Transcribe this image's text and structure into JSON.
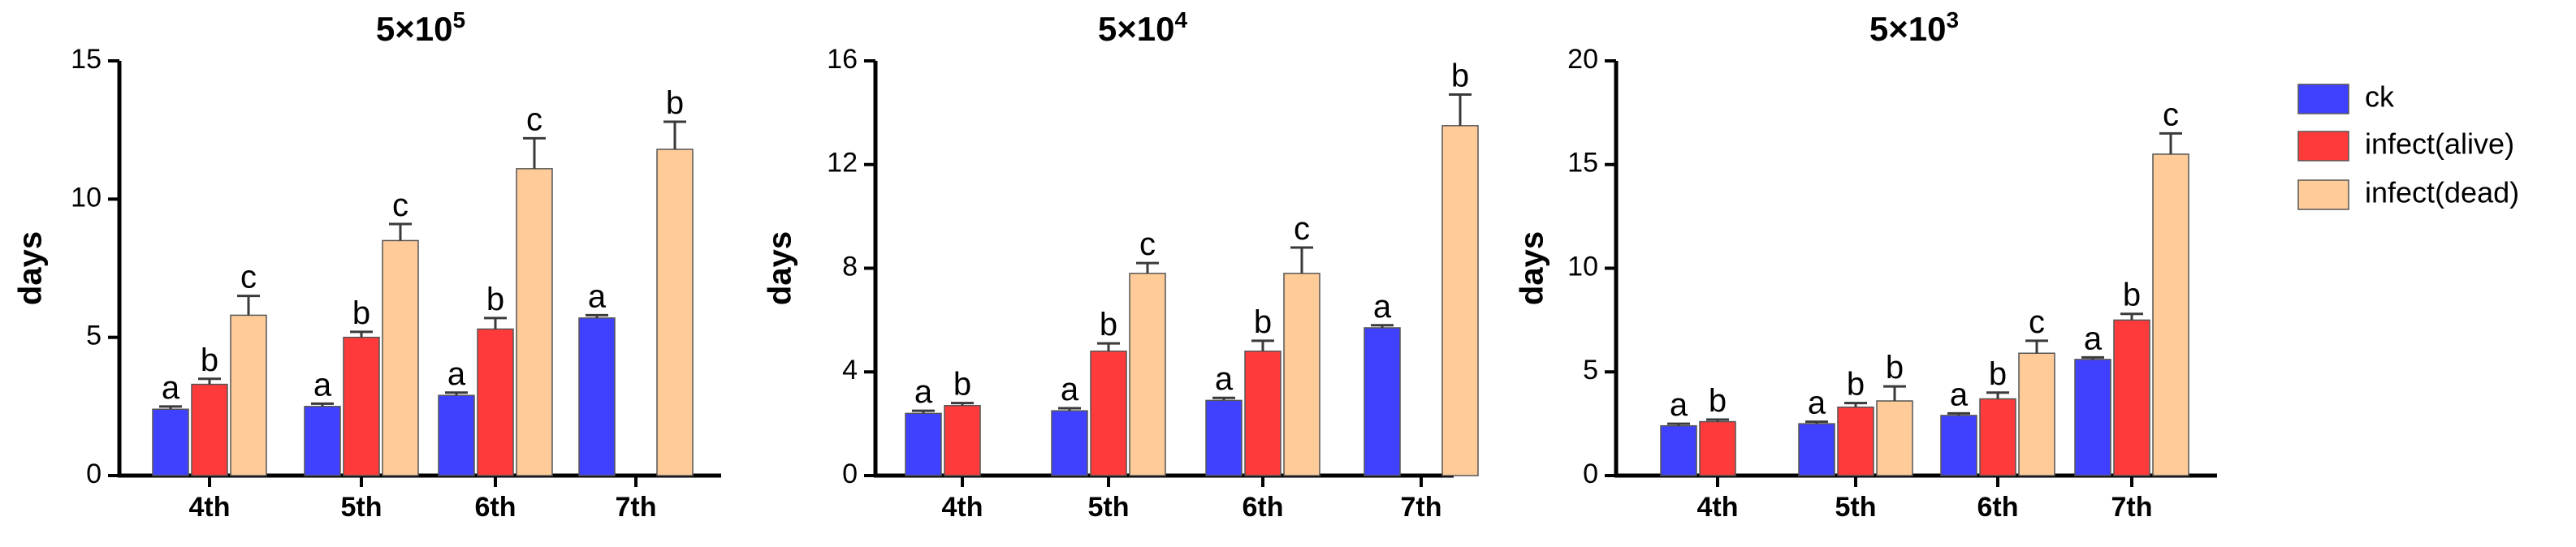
{
  "colors": {
    "ck": "#4040ff",
    "infect_alive": "#ff3a3a",
    "infect_dead": "#ffcc99"
  },
  "legend": [
    {
      "label": "ck",
      "color": "#4040ff"
    },
    {
      "label": "infect(alive)",
      "color": "#ff3a3a"
    },
    {
      "label": "infect(dead)",
      "color": "#ffcc99"
    }
  ],
  "chart_data": [
    {
      "type": "bar",
      "title": "5×10",
      "title_exp": "5",
      "ylabel": "days",
      "ylim": [
        0,
        15
      ],
      "yticks": [
        0,
        5,
        10,
        15
      ],
      "categories": [
        "4th",
        "5th",
        "6th",
        "7th"
      ],
      "series": [
        {
          "name": "ck",
          "values": [
            2.4,
            2.5,
            2.9,
            5.7
          ],
          "errors": [
            0.1,
            0.1,
            0.1,
            0.1
          ],
          "labels": [
            "a",
            "a",
            "a",
            "a"
          ]
        },
        {
          "name": "infect(alive)",
          "values": [
            3.3,
            5.0,
            5.3,
            null
          ],
          "errors": [
            0.2,
            0.2,
            0.4,
            null
          ],
          "labels": [
            "b",
            "b",
            "b",
            ""
          ]
        },
        {
          "name": "infect(dead)",
          "values": [
            5.8,
            8.5,
            11.1,
            11.8
          ],
          "errors": [
            0.7,
            0.6,
            1.1,
            1.0
          ],
          "labels": [
            "c",
            "c",
            "c",
            "b"
          ]
        }
      ]
    },
    {
      "type": "bar",
      "title": "5×10",
      "title_exp": "4",
      "ylabel": "days",
      "ylim": [
        0,
        16
      ],
      "yticks": [
        0,
        4,
        8,
        12,
        16
      ],
      "categories": [
        "4th",
        "5th",
        "6th",
        "7th"
      ],
      "series": [
        {
          "name": "ck",
          "values": [
            2.4,
            2.5,
            2.9,
            5.7
          ],
          "errors": [
            0.1,
            0.1,
            0.1,
            0.1
          ],
          "labels": [
            "a",
            "a",
            "a",
            "a"
          ]
        },
        {
          "name": "infect(alive)",
          "values": [
            2.7,
            4.8,
            4.8,
            null
          ],
          "errors": [
            0.1,
            0.3,
            0.4,
            null
          ],
          "labels": [
            "b",
            "b",
            "b",
            ""
          ]
        },
        {
          "name": "infect(dead)",
          "values": [
            null,
            7.8,
            7.8,
            13.5
          ],
          "errors": [
            null,
            0.4,
            1.0,
            1.2
          ],
          "labels": [
            "",
            "c",
            "c",
            "b"
          ]
        }
      ]
    },
    {
      "type": "bar",
      "title": "5×10",
      "title_exp": "3",
      "ylabel": "days",
      "ylim": [
        0,
        20
      ],
      "yticks": [
        0,
        5,
        10,
        15,
        20
      ],
      "categories": [
        "4th",
        "5th",
        "6th",
        "7th"
      ],
      "series": [
        {
          "name": "ck",
          "values": [
            2.4,
            2.5,
            2.9,
            5.6
          ],
          "errors": [
            0.1,
            0.1,
            0.1,
            0.1
          ],
          "labels": [
            "a",
            "a",
            "a",
            "a"
          ]
        },
        {
          "name": "infect(alive)",
          "values": [
            2.6,
            3.3,
            3.7,
            7.5
          ],
          "errors": [
            0.1,
            0.2,
            0.3,
            0.3
          ],
          "labels": [
            "b",
            "b",
            "b",
            "b"
          ]
        },
        {
          "name": "infect(dead)",
          "values": [
            null,
            3.6,
            5.9,
            15.5
          ],
          "errors": [
            null,
            0.7,
            0.6,
            1.0
          ],
          "labels": [
            "",
            "b",
            "c",
            "c"
          ]
        }
      ]
    }
  ]
}
